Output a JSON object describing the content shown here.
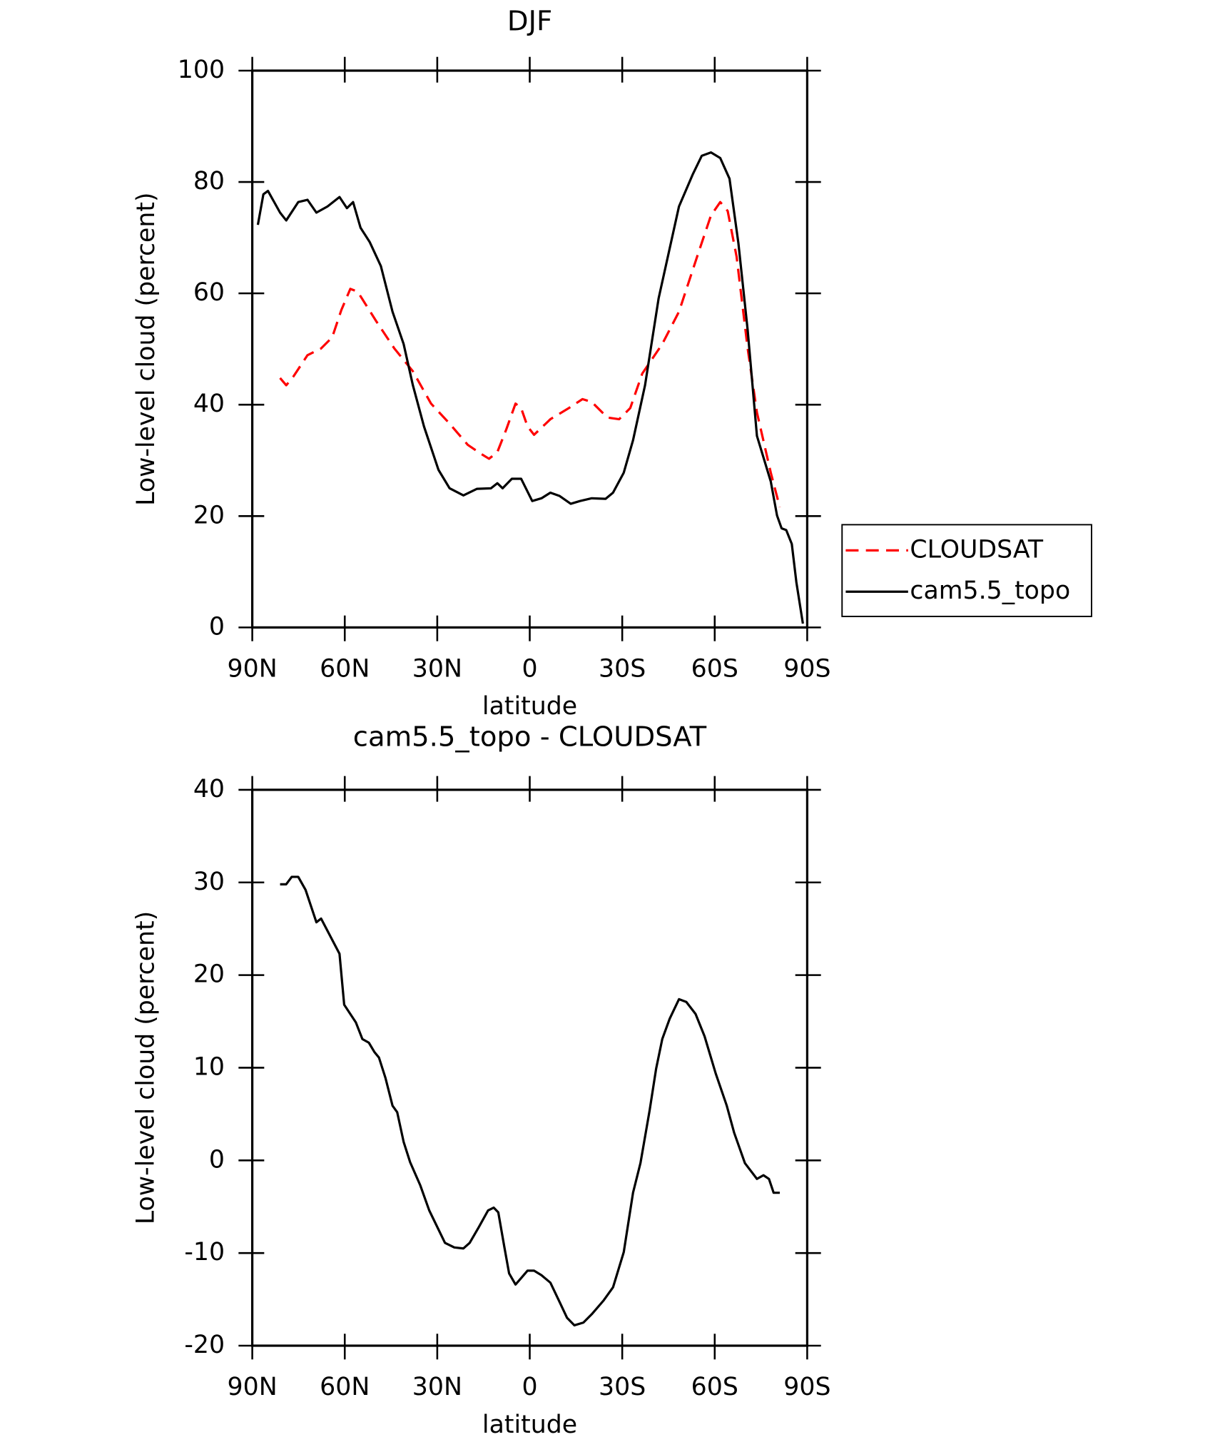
{
  "chart_data": [
    {
      "type": "line",
      "title": "DJF",
      "xlabel": "latitude",
      "ylabel": "Low-level cloud (percent)",
      "xlim": [
        90,
        -90
      ],
      "ylim": [
        0,
        100
      ],
      "xticks": [
        {
          "value": 90,
          "label": "90N"
        },
        {
          "value": 60,
          "label": "60N"
        },
        {
          "value": 30,
          "label": "30N"
        },
        0,
        {
          "value": -30,
          "label": "30S"
        },
        {
          "value": -60,
          "label": "60S"
        },
        {
          "value": -90,
          "label": "90S"
        }
      ],
      "yticks": [
        0,
        20,
        40,
        60,
        80,
        100
      ],
      "legend": "right",
      "series": [
        {
          "name": "CLOUDSAT",
          "color": "#ff0000",
          "dashed": true,
          "x": [
            81,
            79,
            76.6,
            72.1,
            67.7,
            64.1,
            61.1,
            58.2,
            55.8,
            49.8,
            43.9,
            37.9,
            32,
            26,
            20.1,
            15.6,
            13.2,
            10.5,
            7.6,
            4.6,
            2.8,
            0.7,
            -1.4,
            -6.7,
            -12.7,
            -17.1,
            -20.1,
            -25.2,
            -29,
            -32.6,
            -36.5,
            -43,
            -48.4,
            -54.3,
            -58.8,
            -61.8,
            -64.2,
            -67.1,
            -70.7,
            -73.7,
            -78.2,
            -81.1
          ],
          "values": [
            44.8,
            43.5,
            45.1,
            48.9,
            50.1,
            52.1,
            57,
            60.8,
            60.3,
            55,
            50.1,
            46,
            40.2,
            36.6,
            32.8,
            31.1,
            30.3,
            31.5,
            35.6,
            40.2,
            39.4,
            36.1,
            34.6,
            37.4,
            39.4,
            41,
            40.5,
            37.7,
            37.4,
            39.4,
            45.6,
            50.9,
            56.7,
            66.6,
            74,
            76.4,
            74.8,
            66.6,
            50.1,
            38.6,
            27.8,
            21.6
          ]
        },
        {
          "name": "cam5.5_topo",
          "color": "#000000",
          "dashed": false,
          "x": [
            88.2,
            86.4,
            84.9,
            81,
            79,
            75.1,
            72.1,
            69.2,
            65.6,
            61.7,
            59.3,
            57.3,
            54.9,
            51.9,
            48.3,
            44.5,
            40.9,
            37.9,
            34.3,
            29.6,
            26,
            21.5,
            17.1,
            12.6,
            10.5,
            8.8,
            5.8,
            2.8,
            -0.8,
            -3.8,
            -6.7,
            -9.7,
            -13.3,
            -16.3,
            -20.1,
            -24.6,
            -27,
            -30.5,
            -33.5,
            -37.4,
            -41.8,
            -48.4,
            -52.9,
            -55.8,
            -58.8,
            -61.8,
            -64.8,
            -67.7,
            -70.7,
            -73.7,
            -78.2,
            -80.2,
            -81.7,
            -83.2,
            -85,
            -86.5,
            -88.6
          ],
          "values": [
            72.3,
            77.8,
            78.4,
            74.5,
            73.1,
            76.4,
            76.8,
            74.5,
            75.6,
            77.3,
            75.3,
            76.4,
            71.8,
            69.2,
            64.9,
            56.7,
            50.9,
            43.5,
            36.1,
            28.3,
            25,
            23.7,
            24.9,
            25,
            25.9,
            25,
            26.7,
            26.7,
            22.7,
            23.2,
            24.2,
            23.6,
            22.2,
            22.7,
            23.2,
            23.1,
            24.2,
            27.8,
            33.6,
            43.5,
            59.1,
            75.6,
            81.4,
            84.7,
            85.3,
            84.3,
            80.6,
            69,
            53.4,
            34.4,
            26.2,
            20.1,
            17.8,
            17.5,
            15,
            8.1,
            0.7
          ]
        }
      ]
    },
    {
      "type": "line",
      "title": "cam5.5_topo - CLOUDSAT",
      "xlabel": "latitude",
      "ylabel": "Low-level cloud (percent)",
      "xlim": [
        90,
        -90
      ],
      "ylim": [
        -20,
        40
      ],
      "xticks": [
        {
          "value": 90,
          "label": "90N"
        },
        {
          "value": 60,
          "label": "60N"
        },
        {
          "value": 30,
          "label": "30N"
        },
        0,
        {
          "value": -30,
          "label": "30S"
        },
        {
          "value": -60,
          "label": "60S"
        },
        {
          "value": -90,
          "label": "90S"
        }
      ],
      "yticks": [
        -20,
        -10,
        0,
        10,
        20,
        30,
        40
      ],
      "series": [
        {
          "color": "#000000",
          "dashed": false,
          "x": [
            81,
            79,
            77.2,
            75.1,
            72.7,
            69.2,
            67.7,
            61.7,
            60.2,
            56.4,
            54.3,
            52.2,
            50.4,
            48.9,
            46.8,
            44.5,
            43,
            40.9,
            38.8,
            35.5,
            32.6,
            27.5,
            24.5,
            21.5,
            19.5,
            16.5,
            13.5,
            11.7,
            10.2,
            8.2,
            6.7,
            4.6,
            2.8,
            0.7,
            -1.4,
            -3.8,
            -6.7,
            -9.7,
            -12.1,
            -14.5,
            -17.4,
            -20.1,
            -24,
            -27,
            -30.5,
            -33.5,
            -35.9,
            -38.9,
            -41,
            -43,
            -45.4,
            -48.4,
            -50.8,
            -53.8,
            -56.7,
            -60.3,
            -63.9,
            -66.3,
            -69.8,
            -73.7,
            -75.8,
            -77.6,
            -79.1,
            -81.1
          ],
          "values": [
            29.8,
            29.8,
            30.6,
            30.6,
            29.2,
            25.7,
            26.1,
            22.3,
            16.8,
            14.9,
            13.1,
            12.7,
            11.7,
            11.1,
            8.9,
            5.9,
            5.2,
            2,
            -0.2,
            -2.7,
            -5.4,
            -8.9,
            -9.4,
            -9.5,
            -8.9,
            -7.2,
            -5.4,
            -5.1,
            -5.6,
            -9.4,
            -12.2,
            -13.4,
            -12.7,
            -11.9,
            -11.9,
            -12.4,
            -13.2,
            -15.3,
            -17,
            -17.8,
            -17.5,
            -16.6,
            -15.1,
            -13.7,
            -9.9,
            -3.5,
            -0.3,
            5.4,
            9.9,
            13.1,
            15.3,
            17.4,
            17.1,
            15.8,
            13.4,
            9.4,
            5.9,
            3,
            -0.3,
            -2,
            -1.6,
            -2,
            -3.5,
            -3.5
          ]
        }
      ]
    }
  ]
}
